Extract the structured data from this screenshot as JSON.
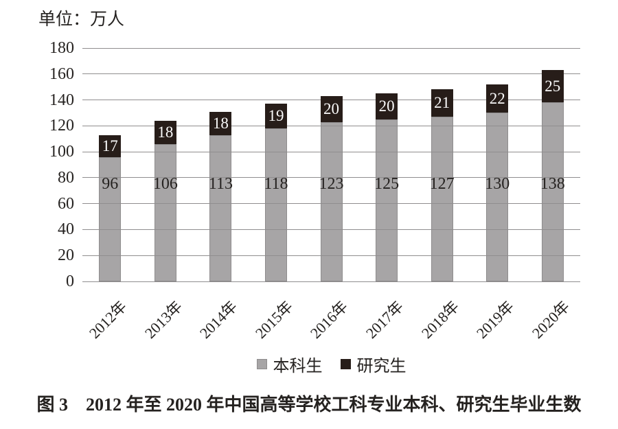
{
  "unit_label": "单位：万人",
  "caption": "图 3　2012 年至 2020 年中国高等学校工科专业本科、研究生毕业生数",
  "colors": {
    "undergrad": "#a7a5a6",
    "grad": "#271d19",
    "gridline": "#8f8d8e",
    "text": "#252220",
    "label_on_dark": "#fafafa",
    "background": "#ffffff"
  },
  "legend": {
    "items": [
      {
        "label": "本科生",
        "color_key": "undergrad"
      },
      {
        "label": "研究生",
        "color_key": "grad"
      }
    ]
  },
  "chart_data": {
    "type": "bar",
    "stacked": true,
    "title": "2012年至2020年中国高等学校工科专业本科、研究生毕业生数",
    "ylabel": "单位：万人",
    "xlabel": "",
    "categories": [
      "2012年",
      "2013年",
      "2014年",
      "2015年",
      "2016年",
      "2017年",
      "2018年",
      "2019年",
      "2020年"
    ],
    "series": [
      {
        "name": "本科生",
        "color_key": "undergrad",
        "label_style": "dark",
        "values": [
          96,
          106,
          113,
          118,
          123,
          125,
          127,
          130,
          138
        ]
      },
      {
        "name": "研究生",
        "color_key": "grad",
        "label_style": "light",
        "values": [
          17,
          18,
          18,
          19,
          20,
          20,
          21,
          22,
          25
        ]
      }
    ],
    "ylim": [
      0,
      180
    ],
    "yticks": [
      0,
      20,
      40,
      60,
      80,
      100,
      120,
      140,
      160,
      180
    ],
    "grid": true,
    "legend_position": "bottom"
  }
}
